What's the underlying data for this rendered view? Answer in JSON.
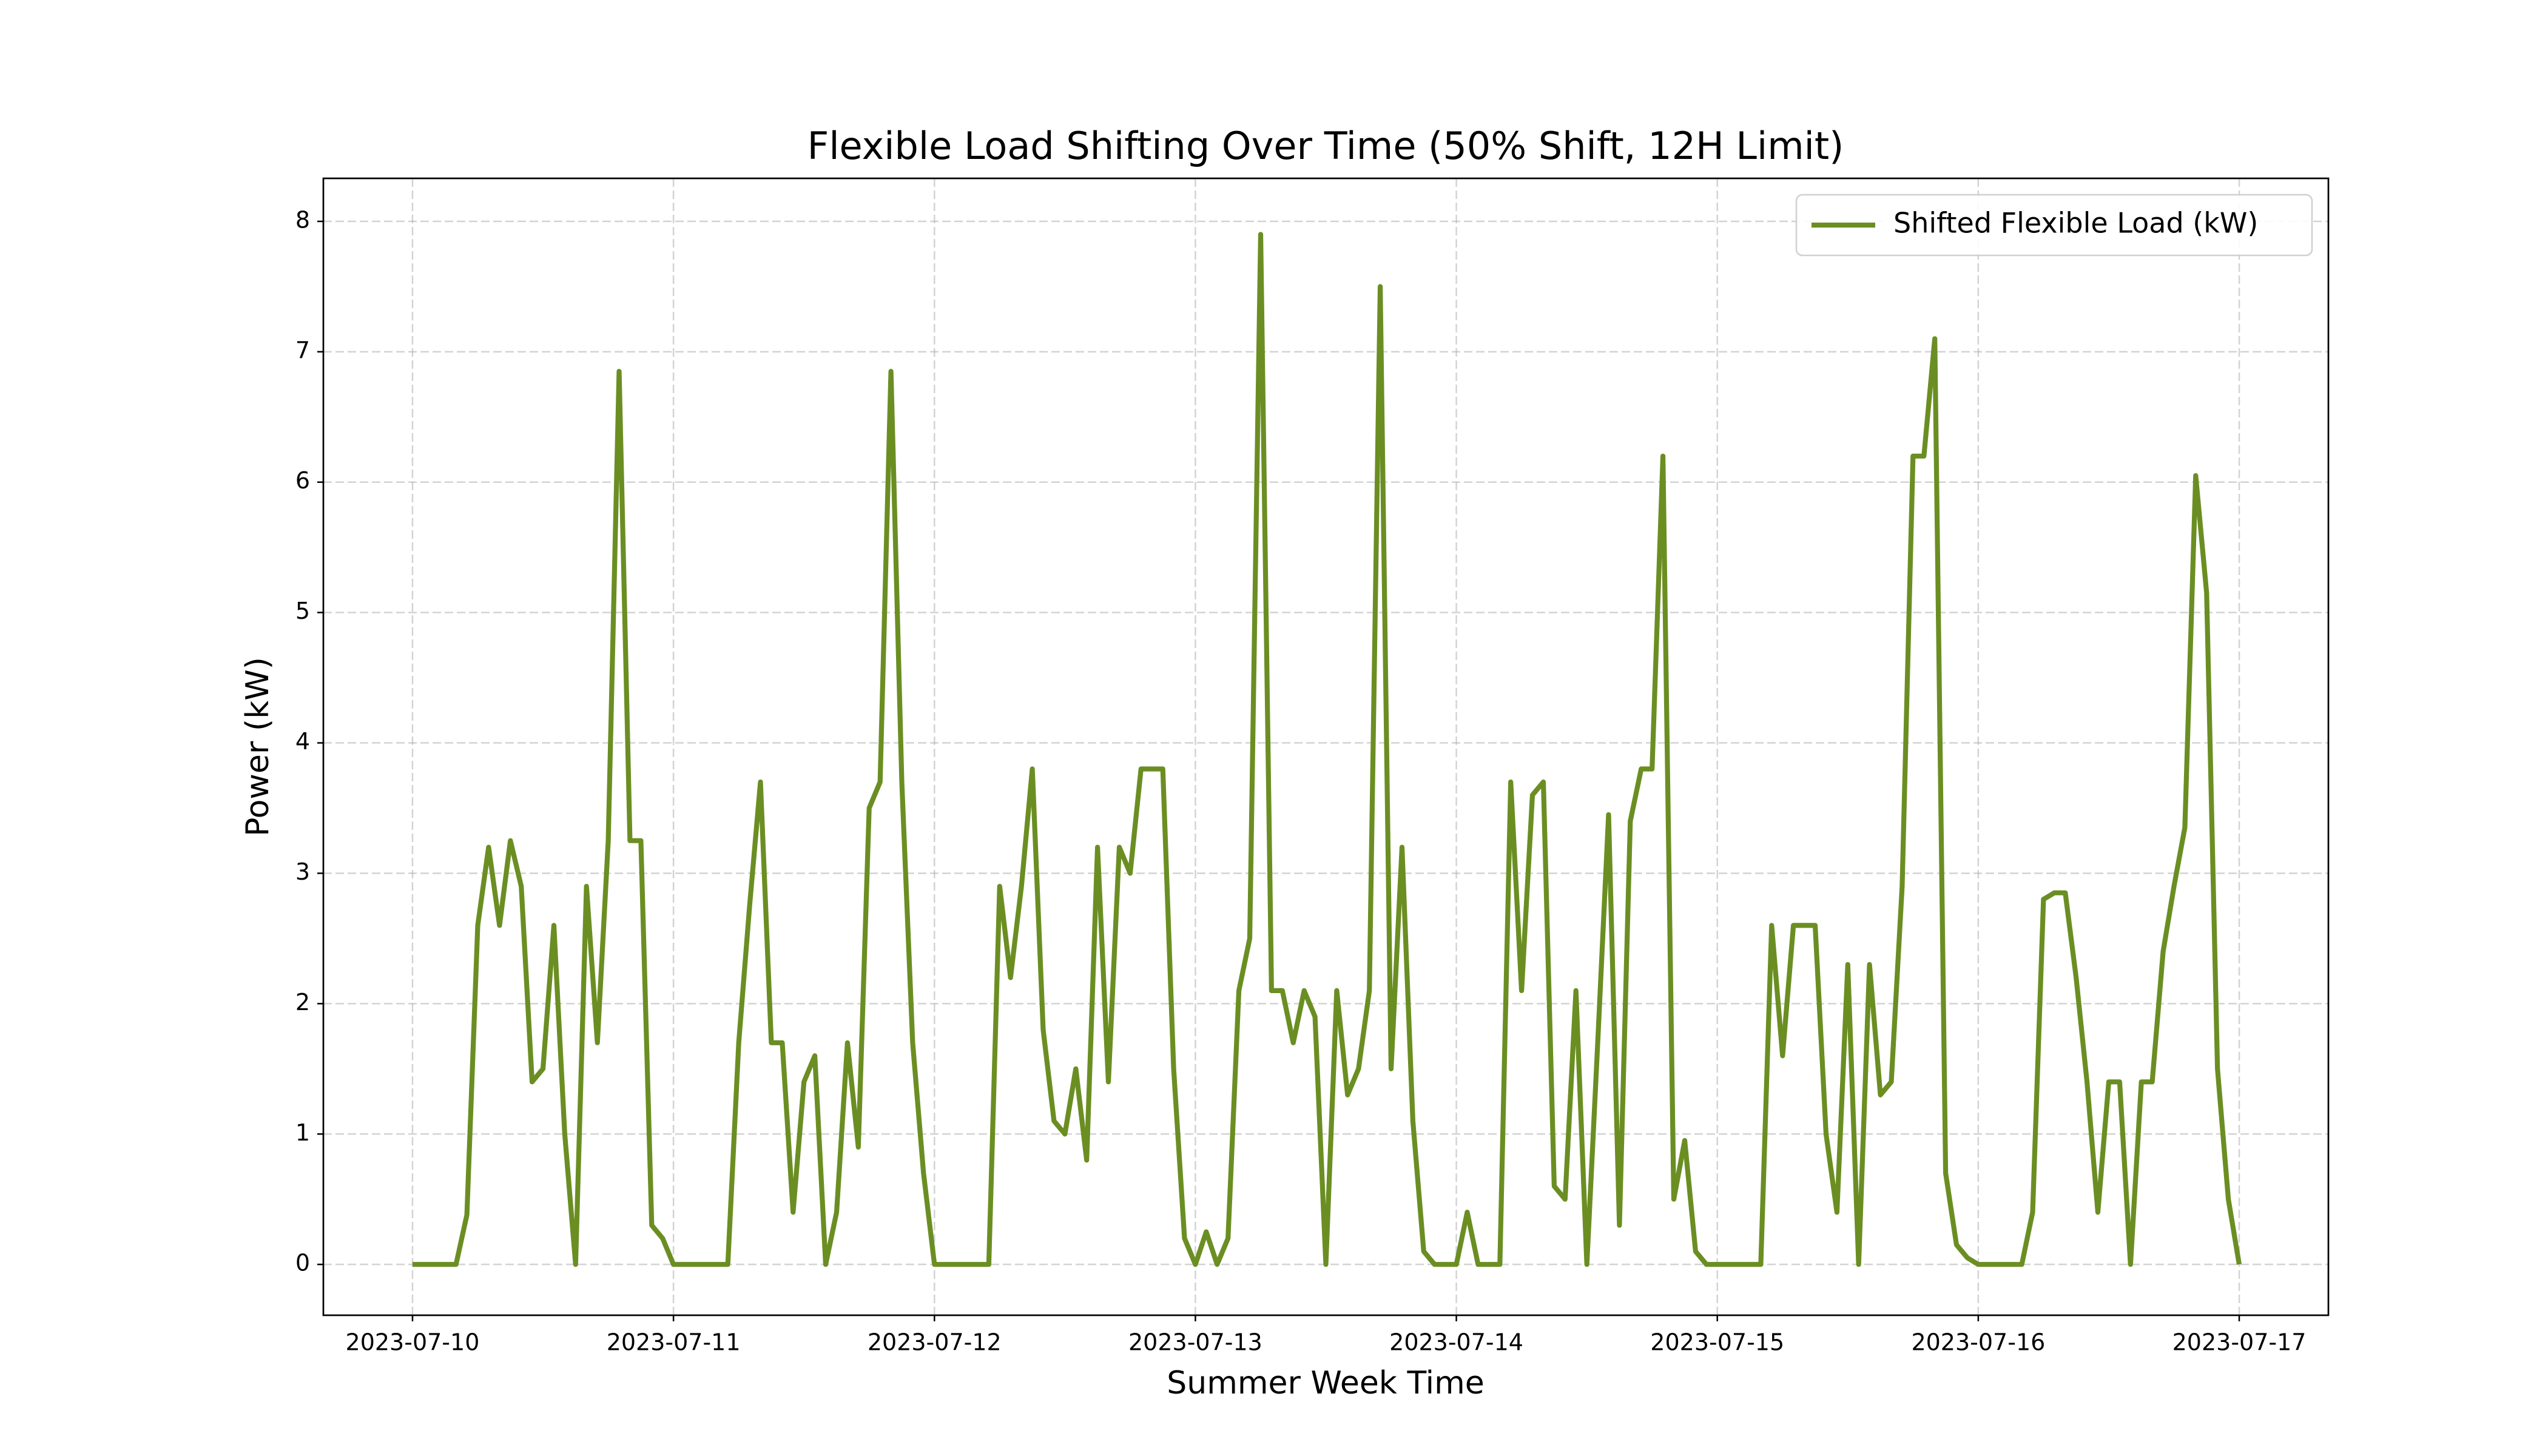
{
  "chart_data": {
    "type": "line",
    "title": "Flexible Load Shifting Over Time (50% Shift, 12H Limit)",
    "xlabel": "Summer Week Time",
    "ylabel": "Power (kW)",
    "x": [
      0,
      1,
      2,
      3,
      4,
      5,
      6,
      7,
      8,
      9,
      10,
      11,
      12,
      13,
      14,
      15,
      16,
      17,
      18,
      19,
      20,
      21,
      22,
      23,
      24,
      25,
      26,
      27,
      28,
      29,
      30,
      31,
      32,
      33,
      34,
      35,
      36,
      37,
      38,
      39,
      40,
      41,
      42,
      43,
      44,
      45,
      46,
      47,
      48,
      49,
      50,
      51,
      52,
      53,
      54,
      55,
      56,
      57,
      58,
      59,
      60,
      61,
      62,
      63,
      64,
      65,
      66,
      67,
      68,
      69,
      70,
      71,
      72,
      73,
      74,
      75,
      76,
      77,
      78,
      79,
      80,
      81,
      82,
      83,
      84,
      85,
      86,
      87,
      88,
      89,
      90,
      91,
      92,
      93,
      94,
      95,
      96,
      97,
      98,
      99,
      100,
      101,
      102,
      103,
      104,
      105,
      106,
      107,
      108,
      109,
      110,
      111,
      112,
      113,
      114,
      115,
      116,
      117,
      118,
      119,
      120,
      121,
      122,
      123,
      124,
      125,
      126,
      127,
      128,
      129,
      130,
      131,
      132,
      133,
      134,
      135,
      136,
      137,
      138,
      139,
      140,
      141,
      142,
      143,
      144,
      145,
      146,
      147,
      148,
      149,
      150,
      151,
      152,
      153,
      154,
      155,
      156,
      157,
      158,
      159,
      160,
      161,
      162,
      163,
      164,
      165,
      166,
      167,
      168
    ],
    "series": [
      {
        "name": "Shifted Flexible Load (kW)",
        "color": "#6b8e23",
        "values": [
          0,
          0,
          0,
          0,
          0,
          0.38,
          2.6,
          3.2,
          2.6,
          3.25,
          2.9,
          1.4,
          1.5,
          2.6,
          1.0,
          0,
          2.9,
          1.7,
          3.25,
          6.85,
          3.25,
          3.25,
          0.3,
          0.2,
          0,
          0,
          0,
          0,
          0,
          0,
          1.7,
          2.75,
          3.7,
          1.7,
          1.7,
          0.4,
          1.4,
          1.6,
          0,
          0.4,
          1.7,
          0.9,
          3.5,
          3.7,
          6.85,
          3.7,
          1.7,
          0.7,
          0,
          0,
          0,
          0,
          0,
          0,
          2.9,
          2.2,
          2.9,
          3.8,
          1.8,
          1.1,
          1.0,
          1.5,
          0.8,
          3.2,
          1.4,
          3.2,
          3.0,
          3.8,
          3.8,
          3.8,
          1.5,
          0.2,
          0,
          0.25,
          0,
          0.2,
          2.1,
          2.5,
          7.9,
          2.1,
          2.1,
          1.7,
          2.1,
          1.9,
          0,
          2.1,
          1.3,
          1.5,
          2.1,
          7.5,
          1.5,
          3.2,
          1.1,
          0.1,
          0,
          0,
          0,
          0.4,
          0,
          0,
          0,
          3.7,
          2.1,
          3.6,
          3.7,
          0.6,
          0.5,
          2.1,
          0,
          1.7,
          3.45,
          0.3,
          3.4,
          3.8,
          3.8,
          6.2,
          0.5,
          0.95,
          0.1,
          0,
          0,
          0,
          0,
          0,
          0,
          2.6,
          1.6,
          2.6,
          2.6,
          2.6,
          1.0,
          0.4,
          2.3,
          0,
          2.3,
          1.3,
          1.4,
          2.9,
          6.2,
          6.2,
          7.1,
          0.7,
          0.15,
          0.05,
          0,
          0,
          0,
          0,
          0,
          0.4,
          2.8,
          2.85,
          2.85,
          2.2,
          1.4,
          0.4,
          1.4,
          1.4,
          0,
          1.4,
          1.4,
          2.4,
          2.9,
          3.35,
          6.05,
          5.15,
          1.5,
          0.5,
          0
        ]
      }
    ],
    "xlim": [
      -8.2,
      176.2
    ],
    "xticks": [
      {
        "value": 0,
        "label": "2023-07-10"
      },
      {
        "value": 24,
        "label": "2023-07-11"
      },
      {
        "value": 48,
        "label": "2023-07-12"
      },
      {
        "value": 72,
        "label": "2023-07-13"
      },
      {
        "value": 96,
        "label": "2023-07-14"
      },
      {
        "value": 120,
        "label": "2023-07-15"
      },
      {
        "value": 144,
        "label": "2023-07-16"
      },
      {
        "value": 168,
        "label": "2023-07-17"
      }
    ],
    "ylim": [
      -0.39,
      8.33
    ],
    "yticks": [
      0,
      1,
      2,
      3,
      4,
      5,
      6,
      7,
      8
    ],
    "grid": true,
    "legend": "upper right"
  }
}
